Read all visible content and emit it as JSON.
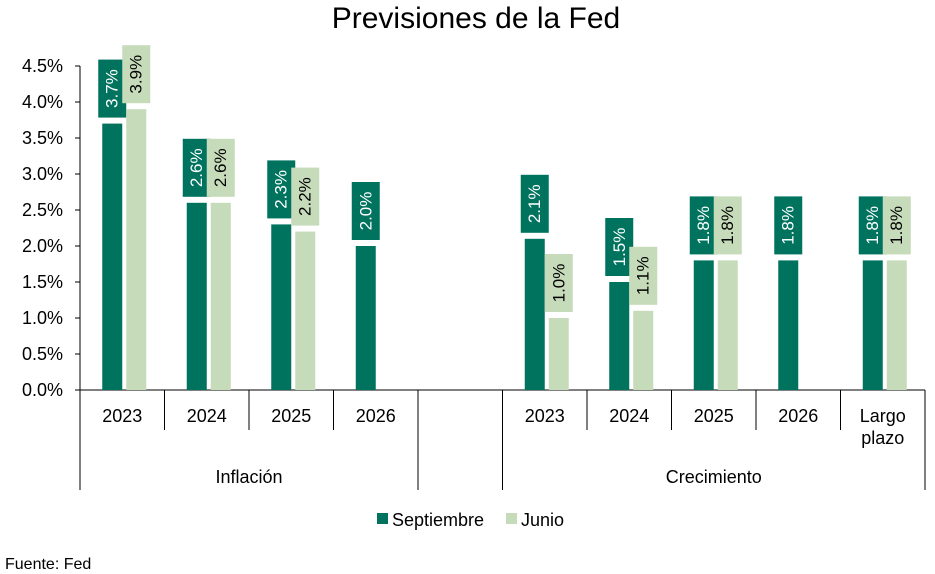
{
  "chart_data": {
    "type": "bar",
    "title": "Previsiones de la Fed",
    "source": "Fuente: Fed",
    "ylim": [
      0,
      4.5
    ],
    "yticks": [
      "0.0%",
      "0.5%",
      "1.0%",
      "1.5%",
      "2.0%",
      "2.5%",
      "3.0%",
      "3.5%",
      "4.0%",
      "4.5%"
    ],
    "groups": [
      {
        "name": "Inflación",
        "categories": [
          "2023",
          "2024",
          "2025",
          "2026"
        ]
      },
      {
        "name": "",
        "categories": [
          ""
        ]
      },
      {
        "name": "Crecimiento",
        "categories": [
          "2023",
          "2024",
          "2025",
          "2026",
          "Largo plazo"
        ]
      }
    ],
    "series": [
      {
        "name": "Septiembre",
        "color": "#00735F",
        "label_color": "#FFFFFF",
        "values": [
          3.7,
          2.6,
          2.3,
          2.0,
          null,
          2.1,
          1.5,
          1.8,
          1.8,
          1.8
        ],
        "labels": [
          "3.7%",
          "2.6%",
          "2.3%",
          "2.0%",
          null,
          "2.1%",
          "1.5%",
          "1.8%",
          "1.8%",
          "1.8%"
        ]
      },
      {
        "name": "Junio",
        "color": "#C6DBB9",
        "label_color": "#000000",
        "values": [
          3.9,
          2.6,
          2.2,
          null,
          null,
          1.0,
          1.1,
          1.8,
          null,
          1.8
        ],
        "labels": [
          "3.9%",
          "2.6%",
          "2.2%",
          null,
          null,
          "1.0%",
          "1.1%",
          "1.8%",
          null,
          "1.8%"
        ]
      }
    ],
    "legend": "bottom"
  }
}
